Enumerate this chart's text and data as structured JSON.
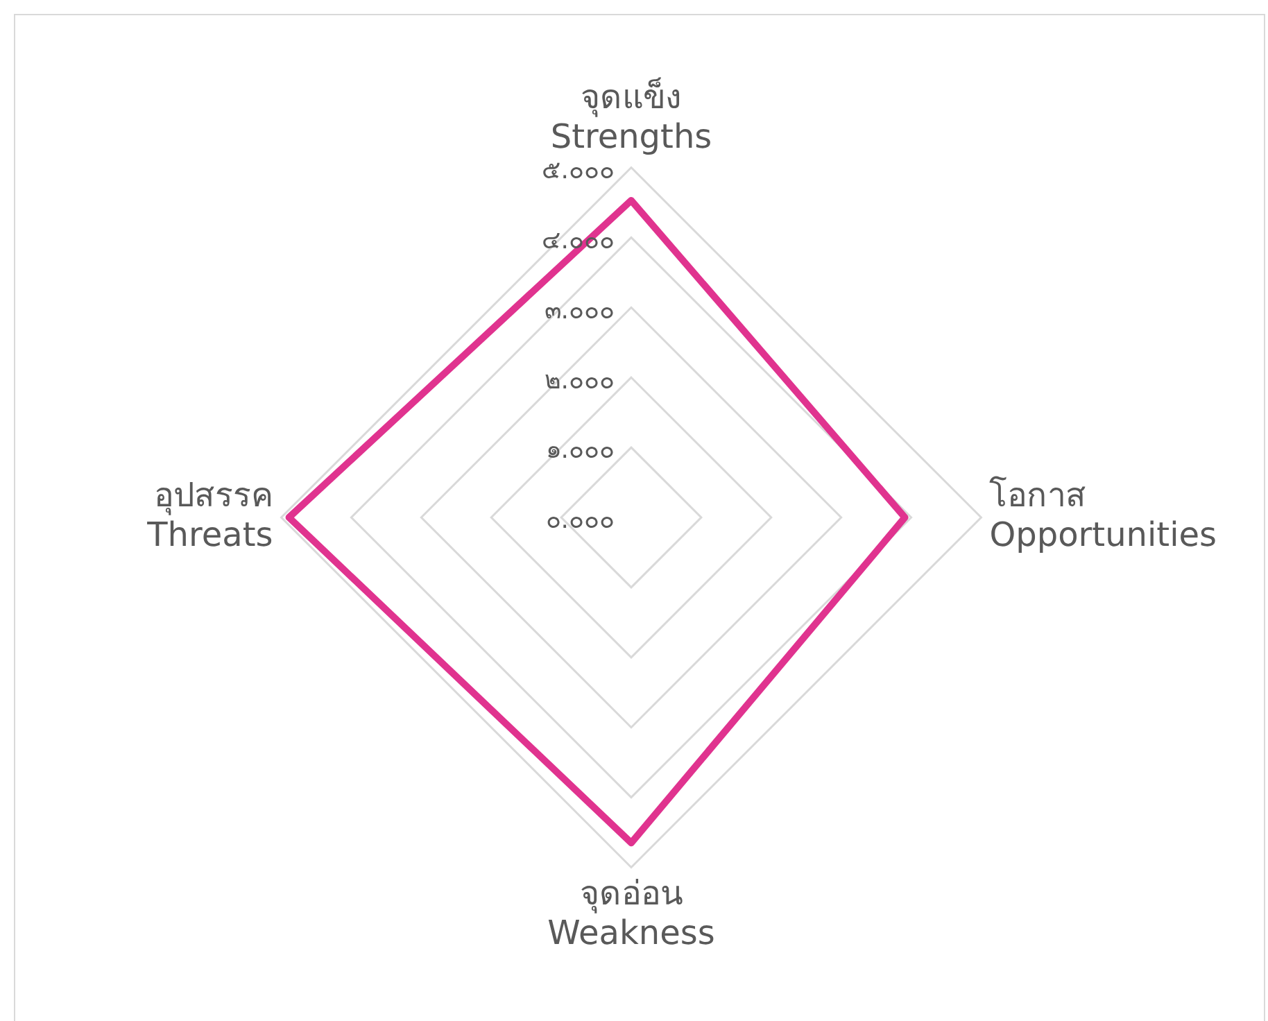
{
  "chart_data": {
    "type": "radar",
    "categories": [
      "จุดแข็ง\nStrengths",
      "โอกาส\nOpportunities",
      "จุดอ่อน\nWeakness",
      "อุปสรรค\nThreats"
    ],
    "series": [
      {
        "color": "#e0338f",
        "values": [
          4.53,
          3.91,
          4.65,
          4.89
        ]
      }
    ],
    "ylim": [
      0,
      5
    ],
    "yticks": [
      {
        "value": 0,
        "label": "๐.๐๐๐"
      },
      {
        "value": 1,
        "label": "๑.๐๐๐"
      },
      {
        "value": 2,
        "label": "๒.๐๐๐"
      },
      {
        "value": 3,
        "label": "๓.๐๐๐"
      },
      {
        "value": 4,
        "label": "๔.๐๐๐"
      },
      {
        "value": 5,
        "label": "๕.๐๐๐"
      }
    ],
    "grid": true,
    "legend": false,
    "marker": "none",
    "line_style": "solid"
  }
}
